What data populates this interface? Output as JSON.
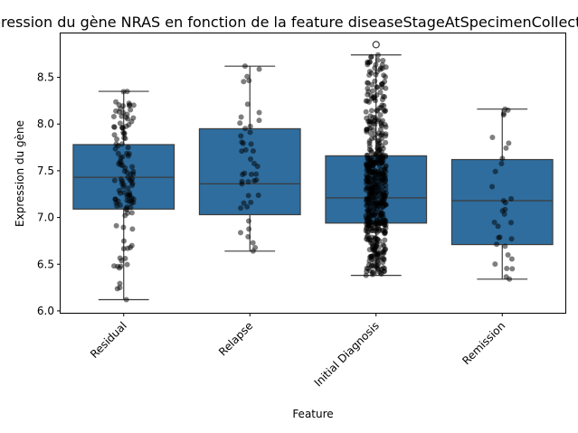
{
  "chart_data": {
    "type": "box",
    "title": "Expression du gène NRAS en fonction de la feature diseaseStageAtSpecimenCollection",
    "xlabel": "Feature",
    "ylabel": "Expression du gène",
    "ylim": [
      5.98,
      8.97
    ],
    "yticks": [
      "6.0",
      "6.5",
      "7.0",
      "7.5",
      "8.0",
      "8.5"
    ],
    "categories": [
      "Residual",
      "Relapse",
      "Initial Diagnosis",
      "Remission"
    ],
    "box_color": "#2e6d9e",
    "point_color": "#000000",
    "boxes": [
      {
        "category": "Residual",
        "whisker_low": 6.12,
        "q1": 7.09,
        "median": 7.43,
        "q3": 7.78,
        "whisker_high": 8.35,
        "outliers": [],
        "n_points": 120
      },
      {
        "category": "Relapse",
        "whisker_low": 6.64,
        "q1": 7.03,
        "median": 7.36,
        "q3": 7.95,
        "whisker_high": 8.62,
        "outliers": [],
        "n_points": 45
      },
      {
        "category": "Initial Diagnosis",
        "whisker_low": 6.38,
        "q1": 6.94,
        "median": 7.21,
        "q3": 7.66,
        "whisker_high": 8.74,
        "outliers": [
          8.85
        ],
        "n_points": 520
      },
      {
        "category": "Remission",
        "whisker_low": 6.34,
        "q1": 6.71,
        "median": 7.18,
        "q3": 7.62,
        "whisker_high": 8.16,
        "outliers": [],
        "n_points": 32
      }
    ]
  }
}
